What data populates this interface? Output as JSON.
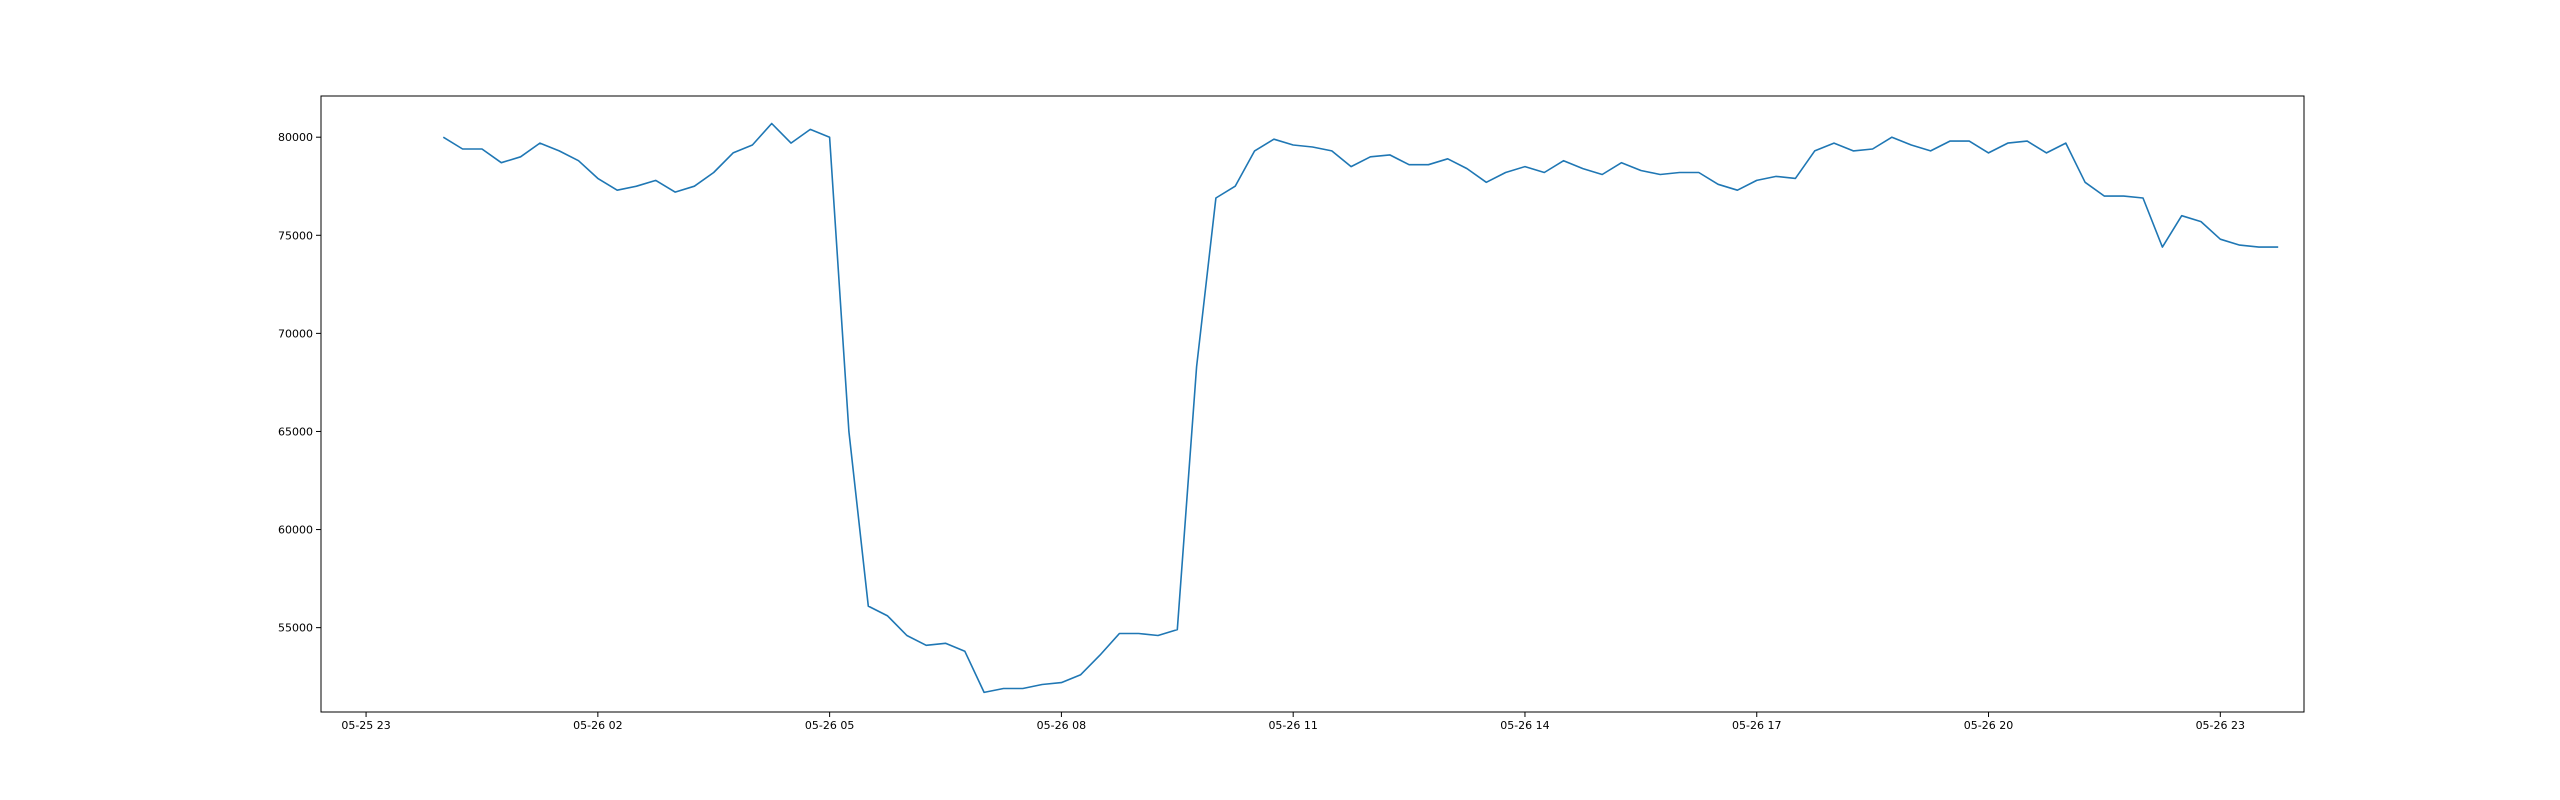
{
  "chart_data": {
    "type": "line",
    "title": "",
    "xlabel": "",
    "ylabel": "",
    "grid": false,
    "xlim": [
      "2025-05-25 22:25",
      "2025-05-27 00:05"
    ],
    "ylim": [
      50700,
      82100
    ],
    "xticks": [
      {
        "value": "2025-05-25 23:00",
        "label": "05-25 23"
      },
      {
        "value": "2025-05-26 02:00",
        "label": "05-26 02"
      },
      {
        "value": "2025-05-26 05:00",
        "label": "05-26 05"
      },
      {
        "value": "2025-05-26 08:00",
        "label": "05-26 08"
      },
      {
        "value": "2025-05-26 11:00",
        "label": "05-26 11"
      },
      {
        "value": "2025-05-26 14:00",
        "label": "05-26 14"
      },
      {
        "value": "2025-05-26 17:00",
        "label": "05-26 17"
      },
      {
        "value": "2025-05-26 20:00",
        "label": "05-26 20"
      },
      {
        "value": "2025-05-26 23:00",
        "label": "05-26 23"
      }
    ],
    "yticks": [
      {
        "value": 55000,
        "label": "55000"
      },
      {
        "value": 60000,
        "label": "60000"
      },
      {
        "value": 65000,
        "label": "65000"
      },
      {
        "value": 70000,
        "label": "70000"
      },
      {
        "value": 75000,
        "label": "75000"
      },
      {
        "value": 80000,
        "label": "80000"
      }
    ],
    "series": [
      {
        "color": "#1f77b4",
        "x_start": "2025-05-26 00:00",
        "x_step_minutes": 15,
        "values": [
          80000,
          79400,
          79400,
          78700,
          79000,
          79700,
          79300,
          78800,
          77900,
          77300,
          77500,
          77800,
          77200,
          77500,
          78200,
          79200,
          79600,
          80700,
          79700,
          80400,
          80000,
          65000,
          56100,
          55600,
          54600,
          54100,
          54200,
          53800,
          51700,
          51900,
          51900,
          52100,
          52200,
          52600,
          53600,
          54700,
          54700,
          54600,
          54900,
          68300,
          76900,
          77500,
          79300,
          79900,
          79600,
          79500,
          79300,
          78500,
          79000,
          79100,
          78600,
          78600,
          78900,
          78400,
          77700,
          78200,
          78500,
          78200,
          78800,
          78400,
          78100,
          78700,
          78300,
          78100,
          78200,
          78200,
          77600,
          77300,
          77800,
          78000,
          77900,
          79300,
          79700,
          79300,
          79400,
          80000,
          79600,
          79300,
          79800,
          79800,
          79200,
          79700,
          79800,
          79200,
          79700,
          77700,
          77000,
          77000,
          76900,
          74400,
          76000,
          75700,
          74800,
          74500,
          74400,
          74400
        ]
      }
    ]
  }
}
